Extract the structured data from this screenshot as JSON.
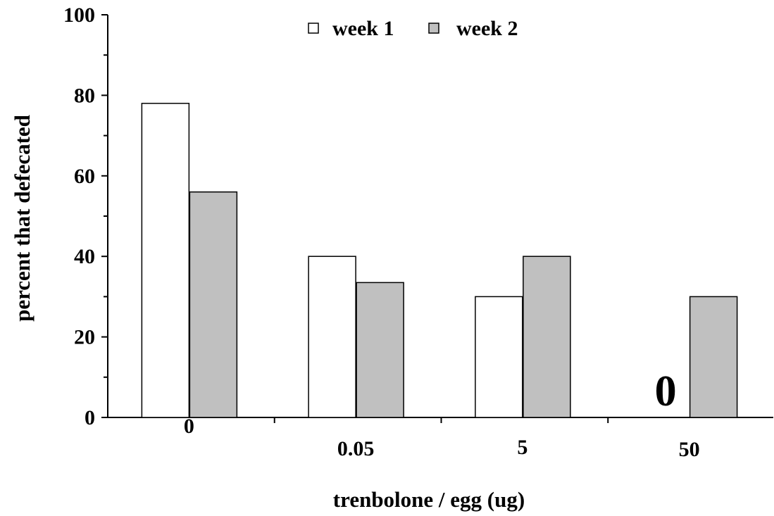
{
  "chart_data": {
    "type": "bar",
    "categories": [
      "0",
      "0.05",
      "5",
      "50"
    ],
    "series": [
      {
        "name": "week 1",
        "color": "#ffffff",
        "values": [
          78,
          40,
          30,
          0
        ]
      },
      {
        "name": "week 2",
        "color": "#c0c0c0",
        "values": [
          56,
          33.5,
          40,
          30
        ]
      }
    ],
    "xlabel": "trenbolone / egg (ug)",
    "ylabel": "percent that defecated",
    "ylim": [
      0,
      100
    ],
    "yticks": [
      "0",
      "20",
      "40",
      "60",
      "80",
      "100"
    ],
    "grid": false,
    "legend_position": "top-center",
    "annotations": [
      {
        "text": "0",
        "category": "50",
        "series": "week 1"
      }
    ]
  }
}
